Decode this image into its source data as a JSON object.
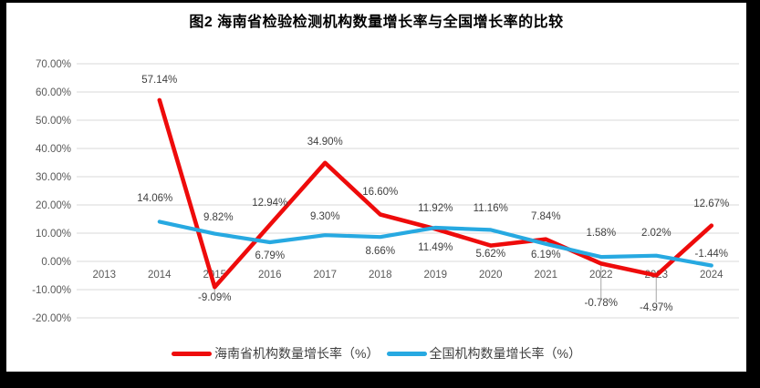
{
  "figure": {
    "title": "图2 海南省检验检测机构数量增长率与全国增长率的比较"
  },
  "colors": {
    "hainan_series": "#EE0B0B",
    "national_series": "#27A9E1",
    "gridline": "#D9D9D9",
    "axis_text": "#595959",
    "data_label_text": "#404040",
    "frame": "#000000",
    "background": "#FFFFFF"
  },
  "chart_data": {
    "type": "line",
    "title": "图2 海南省检验检测机构数量增长率与全国增长率的比较",
    "categories": [
      "2013",
      "2014",
      "2015",
      "2016",
      "2017",
      "2018",
      "2019",
      "2020",
      "2021",
      "2022",
      "2023",
      "2024"
    ],
    "series": [
      {
        "name": "海南省机构数量增长率（%）",
        "color": "#EE0B0B",
        "values": [
          null,
          57.14,
          -9.09,
          12.94,
          34.9,
          16.6,
          11.49,
          5.62,
          7.84,
          -0.78,
          -4.97,
          12.67
        ],
        "labels": [
          "57.14%",
          "-9.09%",
          "12.94%",
          "34.90%",
          "16.60%",
          "11.49%",
          "5.62%",
          "7.84%",
          "-0.78%",
          "-4.97%",
          "12.67%"
        ]
      },
      {
        "name": "全国机构数量增长率（%）",
        "color": "#27A9E1",
        "values": [
          null,
          14.06,
          9.82,
          6.79,
          9.3,
          8.66,
          11.92,
          11.16,
          6.19,
          1.58,
          2.02,
          -1.44
        ],
        "labels": [
          "14.06%",
          "9.82%",
          "6.79%",
          "9.30%",
          "8.66%",
          "11.92%",
          "11.16%",
          "6.19%",
          "1.58%",
          "2.02%",
          "-1.44%"
        ]
      }
    ],
    "y_axis": {
      "min": -20,
      "max": 70,
      "step": 10,
      "ticks": [
        "70.00%",
        "60.00%",
        "50.00%",
        "40.00%",
        "30.00%",
        "20.00%",
        "10.00%",
        "0.00%",
        "-10.00%",
        "-20.00%"
      ]
    },
    "x_axis": {
      "ticks": [
        "2013",
        "2014",
        "2015",
        "2016",
        "2017",
        "2018",
        "2019",
        "2020",
        "2021",
        "2022",
        "2023",
        "2024"
      ]
    },
    "grid": true,
    "legend_position": "bottom"
  }
}
